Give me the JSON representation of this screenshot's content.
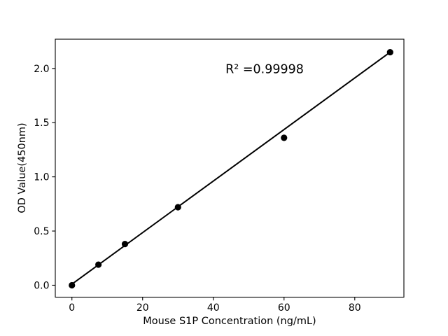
{
  "chart_data": {
    "type": "scatter",
    "title": "",
    "xlabel": "Mouse S1P Concentration (ng/mL)",
    "ylabel": "OD Value(450nm)",
    "annotation": "R² =0.99998",
    "annotation_pos": [
      54.7,
      1.98
    ],
    "x": [
      0,
      7.5,
      15,
      30,
      60,
      90
    ],
    "y": [
      0.0,
      0.19,
      0.38,
      0.72,
      1.36,
      2.15
    ],
    "fit_line": {
      "x1": 0,
      "y1": 0.01,
      "x2": 90,
      "y2": 2.15
    },
    "xticks": [
      "0",
      "20",
      "40",
      "60",
      "80"
    ],
    "yticks": [
      "0.0",
      "0.5",
      "1.0",
      "1.5",
      "2.0"
    ],
    "xlim": [
      -4.7,
      93.9
    ],
    "ylim": [
      -0.11,
      2.27
    ],
    "grid": false,
    "legend": null,
    "marker_color": "#000000",
    "line_color": "#000000",
    "axes_color": "#000000",
    "background": "#ffffff"
  }
}
